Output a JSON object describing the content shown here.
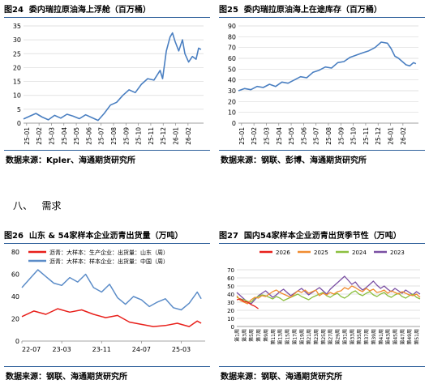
{
  "section": {
    "number": "八、",
    "title": "需求"
  },
  "charts": [
    {
      "figure_no": "图24",
      "title": "委内瑞拉原油海上浮舱（百万桶）",
      "source": "数据来源：Kpler、海通期货研究所",
      "colors": {
        "line": "#4a7fc1"
      },
      "chart_data": {
        "type": "line",
        "title": "委内瑞拉原油海上浮舱（百万桶）",
        "y_ticks": [
          0,
          5,
          10,
          15,
          20,
          25,
          30,
          35
        ],
        "ylim": [
          0,
          35
        ],
        "x_ticks": [
          "25-01",
          "25-02",
          "25-03",
          "25-04",
          "25-05",
          "25-06",
          "25-07",
          "25-08",
          "25-09",
          "25-10",
          "25-11",
          "25-12",
          "26-01",
          "26-02"
        ],
        "xlim": [
          0,
          14.5
        ],
        "grid": true,
        "series": [
          {
            "values": [
              [
                0,
                1.5
              ],
              [
                0.5,
                2.5
              ],
              [
                1,
                3.5
              ],
              [
                1.5,
                2.2
              ],
              [
                2,
                1.2
              ],
              [
                2.5,
                2.8
              ],
              [
                3,
                1.8
              ],
              [
                3.5,
                3.2
              ],
              [
                4,
                2.5
              ],
              [
                4.5,
                1.6
              ],
              [
                5,
                3
              ],
              [
                5.5,
                2
              ],
              [
                6,
                1
              ],
              [
                6.5,
                3.5
              ],
              [
                7,
                6.5
              ],
              [
                7.5,
                7.5
              ],
              [
                8,
                10
              ],
              [
                8.5,
                12
              ],
              [
                9,
                11
              ],
              [
                9.5,
                14
              ],
              [
                10,
                16
              ],
              [
                10.5,
                15.5
              ],
              [
                11,
                19
              ],
              [
                11.2,
                16
              ],
              [
                11.5,
                26
              ],
              [
                11.8,
                31
              ],
              [
                12,
                32.5
              ],
              [
                12.2,
                29.5
              ],
              [
                12.5,
                26
              ],
              [
                12.8,
                30
              ],
              [
                13,
                25
              ],
              [
                13.3,
                22
              ],
              [
                13.6,
                24
              ],
              [
                13.9,
                23
              ],
              [
                14.1,
                27
              ],
              [
                14.3,
                26.5
              ]
            ]
          }
        ]
      }
    },
    {
      "figure_no": "图25",
      "title": "委内瑞拉原油海上在途库存（百万桶）",
      "source": "数据来源：钢联、彭博、海通期货研究所",
      "colors": {
        "line": "#4a7fc1"
      },
      "chart_data": {
        "type": "line",
        "title": "委内瑞拉原油海上在途库存（百万桶）",
        "y_ticks": [
          0,
          10,
          20,
          30,
          40,
          50,
          60,
          70,
          80,
          90
        ],
        "ylim": [
          0,
          90
        ],
        "x_ticks": [
          "25-01",
          "25-02",
          "25-03",
          "25-04",
          "25-05",
          "25-06",
          "25-07",
          "25-08",
          "25-09",
          "25-10",
          "25-11",
          "25-12",
          "26-01",
          "26-02"
        ],
        "xlim": [
          0,
          14.5
        ],
        "grid": true,
        "series": [
          {
            "values": [
              [
                0,
                30
              ],
              [
                0.5,
                32
              ],
              [
                1,
                31
              ],
              [
                1.5,
                34
              ],
              [
                2,
                33
              ],
              [
                2.5,
                36
              ],
              [
                3,
                34
              ],
              [
                3.5,
                38
              ],
              [
                4,
                37
              ],
              [
                4.5,
                40
              ],
              [
                5,
                43
              ],
              [
                5.5,
                42
              ],
              [
                6,
                47
              ],
              [
                6.5,
                49
              ],
              [
                7,
                52
              ],
              [
                7.5,
                51
              ],
              [
                8,
                56
              ],
              [
                8.5,
                57
              ],
              [
                9,
                61
              ],
              [
                9.5,
                63
              ],
              [
                10,
                65
              ],
              [
                10.5,
                67
              ],
              [
                11,
                70
              ],
              [
                11.5,
                75
              ],
              [
                12,
                74
              ],
              [
                12.3,
                69
              ],
              [
                12.6,
                62
              ],
              [
                12.9,
                60
              ],
              [
                13.2,
                57
              ],
              [
                13.5,
                54
              ],
              [
                13.8,
                53
              ],
              [
                14.1,
                56
              ],
              [
                14.3,
                55
              ]
            ]
          }
        ]
      }
    },
    {
      "figure_no": "图26",
      "title": "山东 & 54家样本企业沥青出货量（万吨）",
      "source": "数据来源：钢联、海通期货研究所",
      "legend": [
        "沥青：大样本：生产企业：出货量：山东（周）",
        "沥青：大样本：样本企业：出货量：中国（周）"
      ],
      "colors": {
        "shandong": "#e8201b",
        "china": "#5b8cc8"
      },
      "chart_data": {
        "type": "line",
        "y_ticks": [
          0,
          20,
          40,
          60,
          80
        ],
        "ylim": [
          0,
          80
        ],
        "x_ticks": [
          "22-07",
          "23-03",
          "23-11",
          "24-07",
          "25-03"
        ],
        "xlim": [
          0,
          4.6
        ],
        "grid": false,
        "legend_position": "top-left",
        "series": [
          {
            "name": "沥青：大样本：生产企业：出货量：山东（周）",
            "values": [
              [
                0,
                22
              ],
              [
                0.3,
                27
              ],
              [
                0.6,
                24
              ],
              [
                0.9,
                29
              ],
              [
                1.2,
                26
              ],
              [
                1.5,
                28
              ],
              [
                1.8,
                24
              ],
              [
                2.1,
                21
              ],
              [
                2.4,
                23
              ],
              [
                2.7,
                17
              ],
              [
                3,
                15
              ],
              [
                3.3,
                13
              ],
              [
                3.6,
                14
              ],
              [
                3.9,
                16
              ],
              [
                4.2,
                13
              ],
              [
                4.4,
                18
              ],
              [
                4.5,
                16
              ]
            ]
          },
          {
            "name": "沥青：大样本：样本企业：出货量：中国（周）",
            "values": [
              [
                0,
                48
              ],
              [
                0.2,
                56
              ],
              [
                0.4,
                64
              ],
              [
                0.6,
                58
              ],
              [
                0.8,
                52
              ],
              [
                1,
                50
              ],
              [
                1.2,
                57
              ],
              [
                1.4,
                53
              ],
              [
                1.6,
                60
              ],
              [
                1.8,
                48
              ],
              [
                2,
                44
              ],
              [
                2.2,
                51
              ],
              [
                2.4,
                39
              ],
              [
                2.6,
                33
              ],
              [
                2.8,
                40
              ],
              [
                3,
                37
              ],
              [
                3.2,
                31
              ],
              [
                3.4,
                35
              ],
              [
                3.6,
                38
              ],
              [
                3.8,
                30
              ],
              [
                4,
                28
              ],
              [
                4.2,
                34
              ],
              [
                4.4,
                44
              ],
              [
                4.5,
                38
              ]
            ]
          }
        ]
      }
    },
    {
      "figure_no": "图27",
      "title": "国内54家样本企业沥青出货季节性（万吨）",
      "source": "数据来源：钢联、海通期货研究所",
      "colors": {
        "2026": "#e8201b",
        "2025": "#f08c30",
        "2024": "#8cbf3f",
        "2023": "#7a4fa3"
      },
      "chart_data": {
        "type": "line",
        "y_ticks": [
          0,
          10,
          20,
          30,
          40,
          50,
          60,
          70
        ],
        "ylim": [
          0,
          70
        ],
        "x_ticks": [
          "第1周",
          "第3周",
          "第5周",
          "第7周",
          "第9周",
          "第11周",
          "第13周",
          "第15周",
          "第17周",
          "第19周",
          "第21周",
          "第23周",
          "第25周",
          "第27周",
          "第29周",
          "第31周",
          "第33周",
          "第35周",
          "第37周",
          "第39周",
          "第41周",
          "第43周",
          "第45周",
          "第47周",
          "第49周",
          "第51周"
        ],
        "grid": true,
        "legend_position": "top",
        "series": [
          {
            "name": "2026",
            "values": [
              33,
              34,
              31,
              30,
              27,
              25,
              22
            ]
          },
          {
            "name": "2025",
            "values": [
              38,
              32,
              30,
              28,
              33,
              36,
              35,
              38,
              37,
              40,
              43,
              45,
              42,
              40,
              38,
              36,
              40,
              44,
              42,
              45,
              41,
              43,
              45,
              38,
              41,
              39,
              42,
              40,
              43,
              44,
              48,
              46,
              50,
              48,
              45,
              43,
              47,
              44,
              46,
              42,
              43,
              45,
              41,
              44,
              42,
              40,
              43,
              41,
              39,
              38,
              40,
              36
            ]
          },
          {
            "name": "2024",
            "values": [
              36,
              34,
              33,
              31,
              30,
              35,
              37,
              39,
              38,
              36,
              34,
              37,
              35,
              32,
              34,
              36,
              38,
              40,
              37,
              35,
              33,
              36,
              38,
              40,
              42,
              38,
              36,
              39,
              41,
              37,
              35,
              38,
              42,
              44,
              40,
              38,
              41,
              43,
              39,
              37,
              40,
              42,
              38,
              36,
              39,
              41,
              37,
              35,
              38,
              40,
              36,
              34
            ]
          },
          {
            "name": "2023",
            "values": [
              42,
              38,
              34,
              30,
              28,
              33,
              38,
              41,
              44,
              40,
              36,
              39,
              43,
              46,
              42,
              38,
              41,
              44,
              47,
              43,
              39,
              42,
              45,
              48,
              44,
              40,
              46,
              50,
              54,
              58,
              62,
              57,
              52,
              55,
              49,
              45,
              48,
              52,
              56,
              51,
              47,
              50,
              46,
              43,
              47,
              44,
              41,
              45,
              42,
              39,
              43,
              40
            ]
          }
        ]
      }
    }
  ]
}
